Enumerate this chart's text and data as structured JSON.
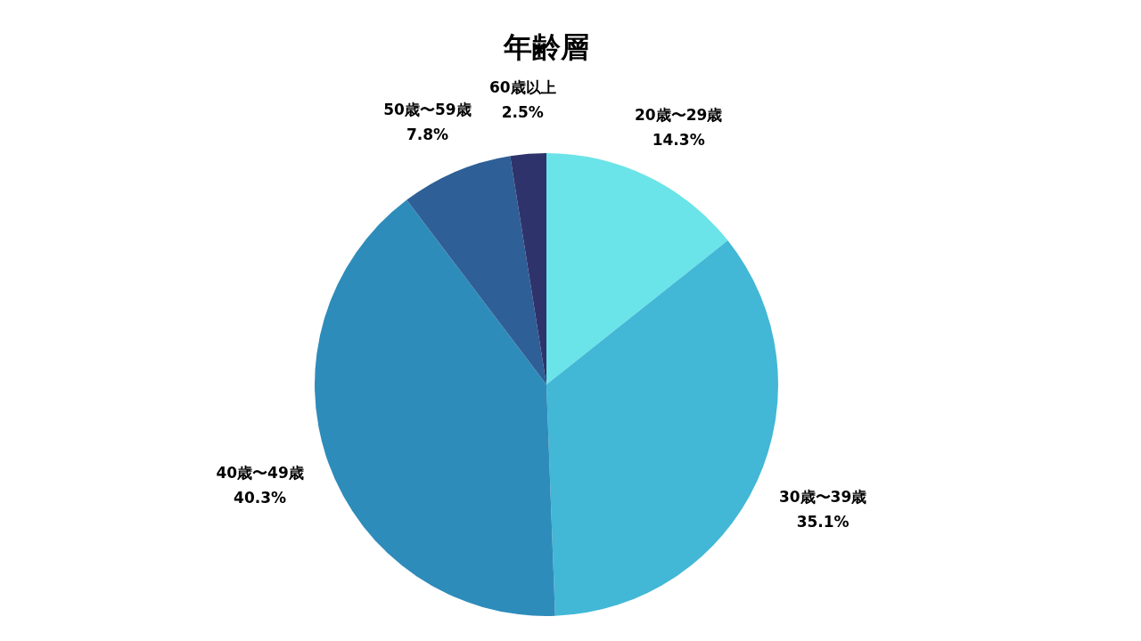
{
  "chart_data": {
    "type": "pie",
    "title": "年齢層",
    "categories": [
      "20歳〜29歳",
      "30歳〜39歳",
      "40歳〜49歳",
      "50歳〜59歳",
      "60歳以上"
    ],
    "values": [
      14.3,
      35.1,
      40.3,
      7.8,
      2.5
    ],
    "colors": [
      "#6ae4e8",
      "#42b7d6",
      "#2e8cba",
      "#2e5f96",
      "#2f336b"
    ],
    "value_labels": [
      "14.3%",
      "35.1%",
      "40.3%",
      "7.8%",
      "2.5%"
    ]
  }
}
